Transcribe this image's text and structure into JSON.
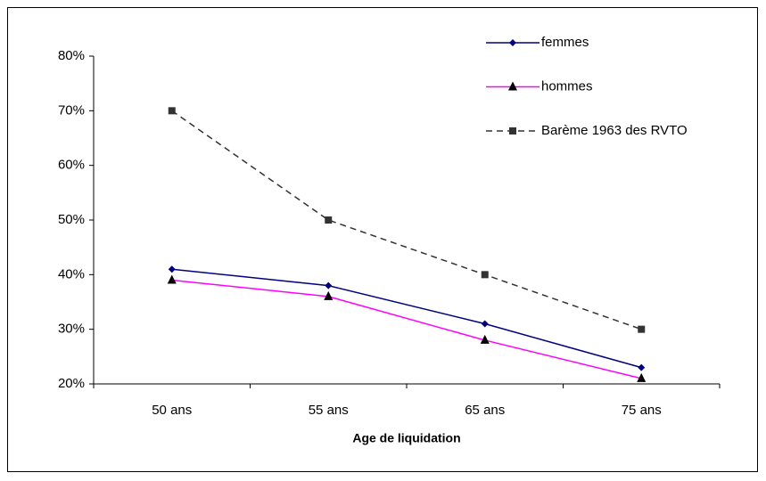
{
  "chart_data": {
    "type": "line",
    "x_label": "Age de liquidation",
    "categories": [
      "50 ans",
      "55 ans",
      "65 ans",
      "75 ans"
    ],
    "series": [
      {
        "name": "femmes",
        "color": "#000080",
        "marker": "diamond",
        "dashed": false,
        "values": [
          41,
          38,
          31,
          23
        ]
      },
      {
        "name": "hommes",
        "color": "#ff00ff",
        "marker": "triangle",
        "dashed": false,
        "values": [
          39,
          36,
          28,
          21
        ]
      },
      {
        "name": "Barème 1963 des RVTO",
        "color": "#333333",
        "marker": "square",
        "dashed": true,
        "values": [
          70,
          50,
          40,
          30
        ]
      }
    ],
    "ylim": [
      20,
      80
    ],
    "yticks": [
      {
        "value": 20,
        "label": "20%"
      },
      {
        "value": 30,
        "label": "30%"
      },
      {
        "value": 40,
        "label": "40%"
      },
      {
        "value": 50,
        "label": "50%"
      },
      {
        "value": 60,
        "label": "60%"
      },
      {
        "value": 70,
        "label": "70%"
      },
      {
        "value": 80,
        "label": "80%"
      }
    ],
    "legend": "top-right"
  }
}
